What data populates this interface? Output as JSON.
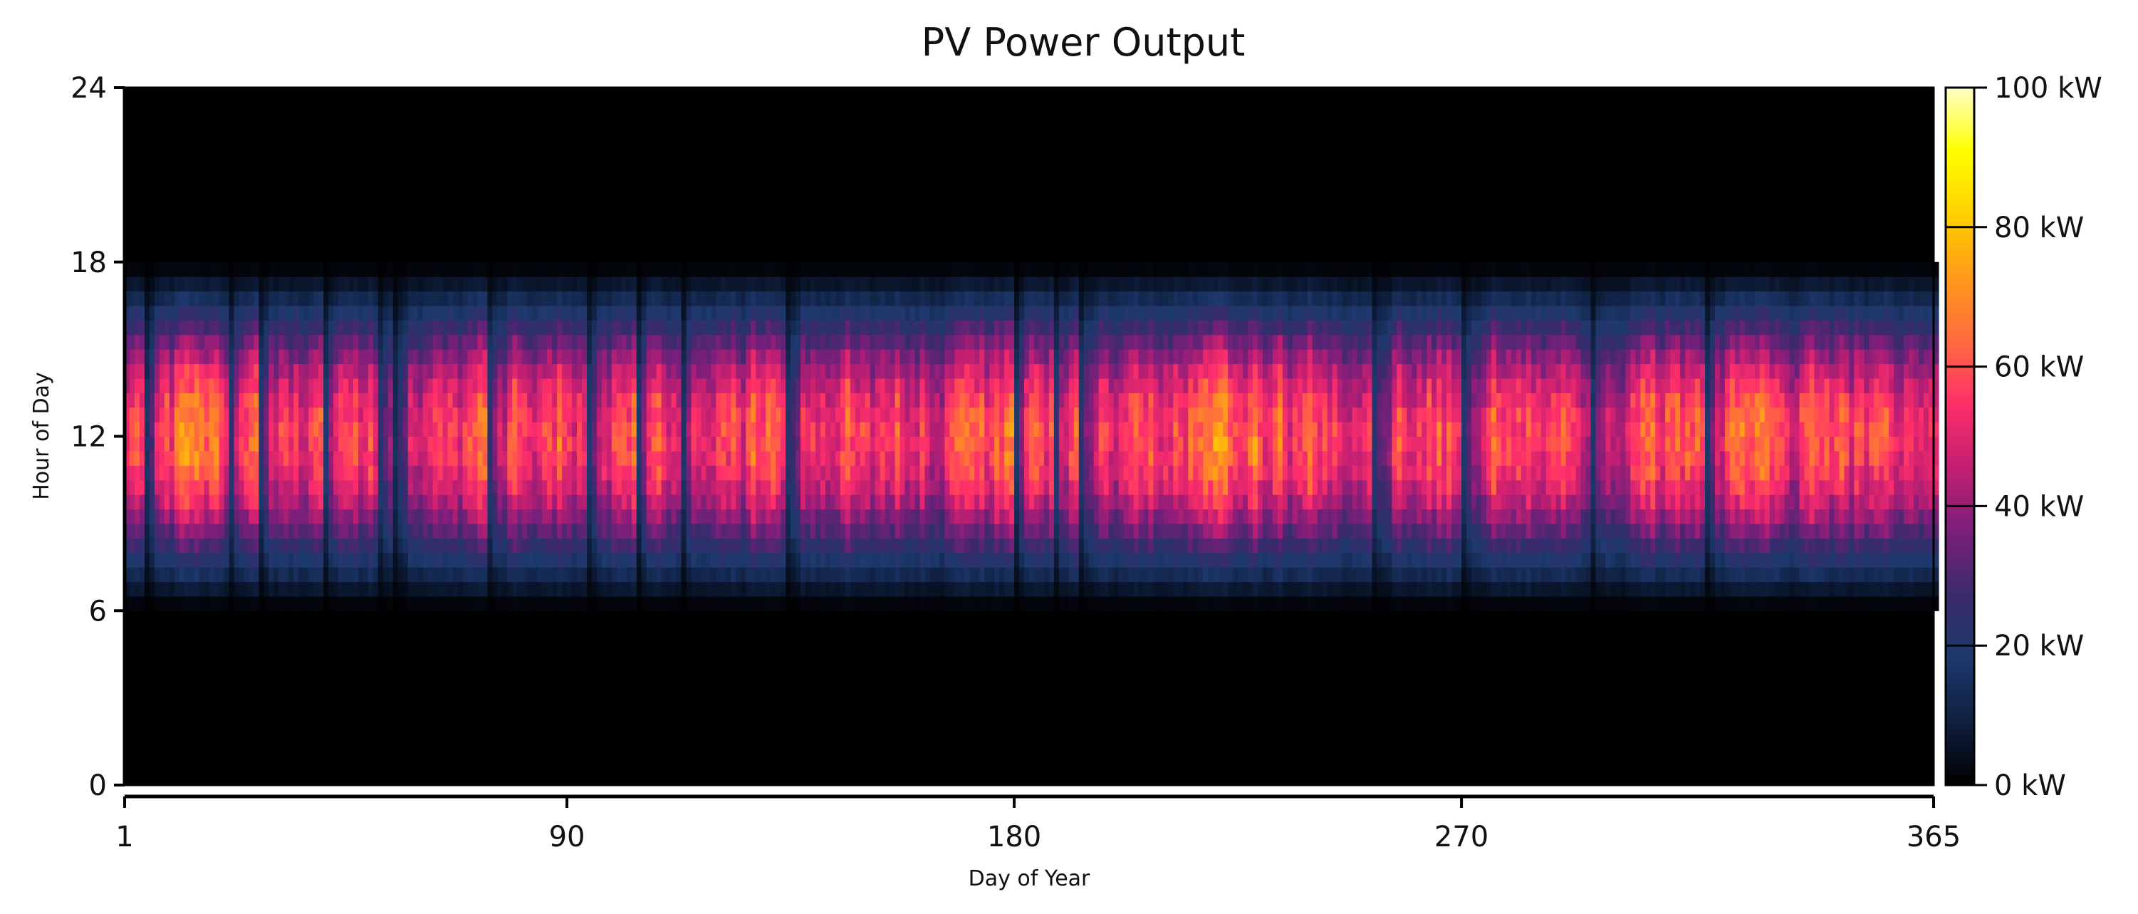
{
  "chart_data": {
    "type": "heatmap",
    "title": "PV Power Output",
    "xlabel": "Day of Year",
    "ylabel": "Hour of Day",
    "xlim": [
      1,
      365
    ],
    "ylim": [
      0,
      24
    ],
    "x_ticks": [
      "1",
      "90",
      "180",
      "270",
      "365"
    ],
    "y_ticks": [
      "0",
      "6",
      "12",
      "18",
      "24"
    ],
    "colorbar": {
      "min": 0,
      "max": 100,
      "ticks": [
        "0 kW",
        "20 kW",
        "40 kW",
        "60 kW",
        "80 kW",
        "100 kW"
      ],
      "colormap": [
        "#000000",
        "#0f1f3f",
        "#1d3a6e",
        "#3a2a6e",
        "#7a1f7a",
        "#c21f72",
        "#ff2f6a",
        "#ff6a3f",
        "#ff9a1a",
        "#ffd000",
        "#ffff00",
        "#ffffc8"
      ]
    },
    "daylight_hours": [
      6,
      18
    ],
    "peak_hour": 12,
    "typical_peak_kw": 70
  }
}
